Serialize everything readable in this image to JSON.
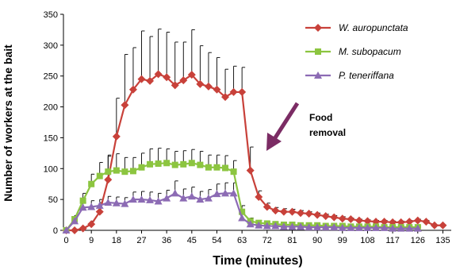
{
  "chart_data": {
    "type": "line",
    "xlabel": "Time (minutes)",
    "ylabel": "Number of workers at the bait",
    "xlim": [
      -1,
      138
    ],
    "ylim": [
      0,
      350
    ],
    "xticks": [
      0,
      9,
      18,
      27,
      36,
      45,
      54,
      63,
      72,
      81,
      90,
      99,
      108,
      117,
      126,
      135
    ],
    "yticks": [
      0,
      50,
      100,
      150,
      200,
      250,
      300,
      350
    ],
    "grid": false,
    "legend_position": "top-right",
    "annotation": {
      "lines": [
        "Food",
        "removal"
      ],
      "arrow_color": "#7b2c64"
    },
    "series": [
      {
        "name": "W. auropunctata",
        "color": "#c8413a",
        "marker": "diamond",
        "x": [
          0,
          3,
          6,
          9,
          12,
          15,
          18,
          21,
          24,
          27,
          30,
          33,
          36,
          39,
          42,
          45,
          48,
          51,
          54,
          57,
          60,
          63,
          66,
          69,
          72,
          75,
          78,
          81,
          84,
          87,
          90,
          93,
          96,
          99,
          102,
          105,
          108,
          111,
          114,
          117,
          120,
          123,
          126,
          129,
          132,
          135
        ],
        "y": [
          0,
          0,
          3,
          10,
          30,
          82,
          152,
          203,
          228,
          245,
          242,
          253,
          248,
          235,
          243,
          252,
          237,
          233,
          228,
          216,
          224,
          224,
          97,
          54,
          38,
          32,
          30,
          30,
          28,
          27,
          25,
          23,
          21,
          19,
          18,
          16,
          15,
          14,
          14,
          13,
          13,
          14,
          16,
          14,
          8,
          8
        ],
        "error": [
          0,
          0,
          2,
          5,
          15,
          40,
          62,
          82,
          68,
          78,
          72,
          73,
          73,
          70,
          62,
          73,
          62,
          55,
          52,
          45,
          42,
          40,
          38,
          10,
          6,
          5,
          5,
          4,
          4,
          3,
          3,
          3,
          3,
          3,
          2,
          2,
          2,
          2,
          2,
          2,
          2,
          2,
          2,
          2,
          1,
          1
        ]
      },
      {
        "name": "M. subopacum",
        "color": "#8cc540",
        "marker": "square",
        "x": [
          0,
          3,
          6,
          9,
          12,
          15,
          18,
          21,
          24,
          27,
          30,
          33,
          36,
          39,
          42,
          45,
          48,
          51,
          54,
          57,
          60,
          63,
          66,
          69,
          72,
          75,
          78,
          81,
          84,
          87,
          90,
          93,
          96,
          99,
          102,
          105,
          108,
          111,
          114,
          117,
          120,
          123,
          126
        ],
        "y": [
          0,
          18,
          48,
          75,
          88,
          95,
          97,
          95,
          96,
          102,
          107,
          108,
          109,
          106,
          107,
          109,
          106,
          102,
          102,
          101,
          95,
          30,
          15,
          12,
          11,
          10,
          9,
          9,
          8,
          8,
          8,
          7,
          7,
          7,
          6,
          6,
          6,
          6,
          5,
          5,
          5,
          5,
          5
        ],
        "error": [
          0,
          6,
          12,
          16,
          22,
          25,
          27,
          23,
          22,
          23,
          25,
          25,
          23,
          22,
          22,
          22,
          22,
          20,
          20,
          20,
          18,
          10,
          5,
          4,
          3,
          3,
          3,
          3,
          2,
          2,
          2,
          2,
          2,
          2,
          2,
          2,
          2,
          2,
          2,
          2,
          2,
          2,
          2
        ]
      },
      {
        "name": "P. teneriffana",
        "color": "#8c6bb4",
        "marker": "triangle",
        "x": [
          0,
          3,
          6,
          9,
          12,
          15,
          18,
          21,
          24,
          27,
          30,
          33,
          36,
          39,
          42,
          45,
          48,
          51,
          54,
          57,
          60,
          63,
          66,
          69,
          72,
          75,
          78,
          81,
          84,
          87,
          90,
          93,
          96,
          99,
          102,
          105,
          108,
          111,
          114,
          117,
          120,
          123,
          126
        ],
        "y": [
          0,
          15,
          37,
          38,
          40,
          45,
          44,
          43,
          50,
          50,
          49,
          47,
          52,
          60,
          52,
          55,
          50,
          52,
          59,
          60,
          60,
          20,
          10,
          8,
          7,
          7,
          6,
          6,
          6,
          5,
          5,
          5,
          5,
          4,
          4,
          4,
          4,
          4,
          4,
          3,
          3,
          3,
          3
        ],
        "error": [
          0,
          5,
          8,
          10,
          10,
          10,
          10,
          10,
          12,
          13,
          13,
          13,
          13,
          20,
          15,
          15,
          13,
          14,
          16,
          17,
          17,
          8,
          4,
          3,
          2,
          2,
          2,
          2,
          2,
          2,
          2,
          2,
          2,
          2,
          2,
          2,
          2,
          2,
          2,
          2,
          2,
          2,
          2
        ]
      }
    ]
  }
}
